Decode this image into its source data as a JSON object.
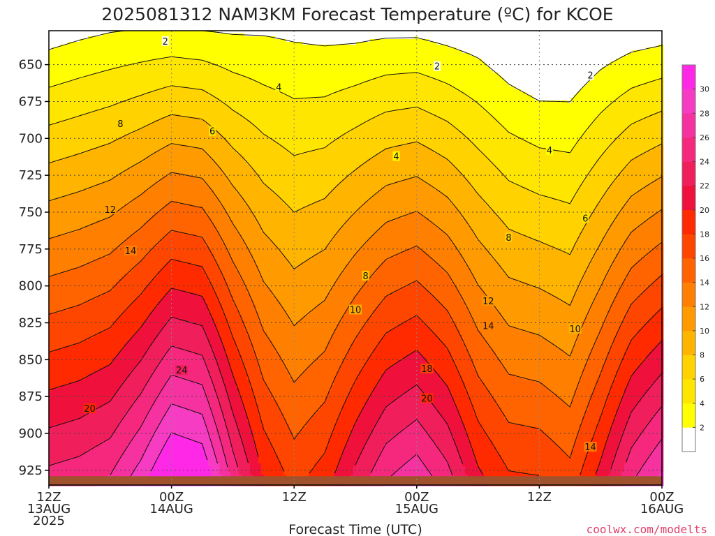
{
  "chart_data": {
    "type": "heatmap",
    "title": "2025081312 NAM3KM Forecast Temperature (ºC) for KCOE",
    "xlabel": "Forecast Time (UTC)",
    "ylabel": "",
    "credit": "coolwx.com/modelts",
    "x_ticks": [
      {
        "hour": 0,
        "line1": "12Z",
        "line2": "13AUG",
        "line3": "2025"
      },
      {
        "hour": 12,
        "line1": "00Z",
        "line2": "14AUG",
        "line3": ""
      },
      {
        "hour": 24,
        "line1": "12Z",
        "line2": "",
        "line3": ""
      },
      {
        "hour": 36,
        "line1": "00Z",
        "line2": "15AUG",
        "line3": ""
      },
      {
        "hour": 48,
        "line1": "12Z",
        "line2": "",
        "line3": ""
      },
      {
        "hour": 60,
        "line1": "00Z",
        "line2": "16AUG",
        "line3": ""
      }
    ],
    "xlim": [
      0,
      60
    ],
    "y_ticks": [
      650,
      675,
      700,
      725,
      750,
      775,
      800,
      825,
      850,
      875,
      900,
      925
    ],
    "ylim": [
      935,
      627
    ],
    "colorbar": {
      "ticks": [
        2,
        4,
        6,
        8,
        10,
        12,
        14,
        16,
        18,
        20,
        22,
        24,
        26,
        28,
        30
      ],
      "levels": [
        0,
        2,
        4,
        6,
        8,
        10,
        12,
        14,
        16,
        18,
        20,
        22,
        24,
        26,
        28,
        30,
        32
      ],
      "colors": [
        "#ffffff",
        "#ffff00",
        "#ffe600",
        "#ffd200",
        "#ffb400",
        "#ff9a00",
        "#ff7f00",
        "#ff6400",
        "#ff4600",
        "#ff2a00",
        "#f0103c",
        "#f01e5a",
        "#f5287d",
        "#f532a0",
        "#f53cc3",
        "#ff28e6"
      ]
    },
    "terrain_color": "#a0522d",
    "surface_pressure": 929,
    "profile": {
      "hours": [
        0,
        3,
        6,
        9,
        12,
        15,
        18,
        21,
        24,
        27,
        30,
        33,
        36,
        39,
        42,
        45,
        48,
        51,
        54,
        57,
        60
      ],
      "t_top": [
        1.0,
        1.5,
        1.9,
        2.1,
        2.2,
        2.0,
        1.8,
        1.8,
        1.6,
        1.4,
        1.4,
        1.6,
        1.6,
        1.2,
        0.8,
        -0.2,
        -1.0,
        -0.8,
        0.2,
        0.8,
        1.1
      ],
      "lapse": [
        0.078,
        0.078,
        0.08,
        0.089,
        0.102,
        0.1,
        0.078,
        0.06,
        0.052,
        0.058,
        0.07,
        0.08,
        0.085,
        0.078,
        0.065,
        0.061,
        0.063,
        0.058,
        0.068,
        0.082,
        0.09
      ]
    },
    "contour_labels": [
      {
        "v": "2",
        "hour": 11.4,
        "p": 634
      },
      {
        "v": "2",
        "hour": 38.0,
        "p": 651
      },
      {
        "v": "2",
        "hour": 53.0,
        "p": 657
      },
      {
        "v": "4",
        "hour": 22.5,
        "p": 665
      },
      {
        "v": "4",
        "hour": 34.0,
        "p": 712
      },
      {
        "v": "4",
        "hour": 49.0,
        "p": 708
      },
      {
        "v": "8",
        "hour": 7.0,
        "p": 690
      },
      {
        "v": "6",
        "hour": 16.0,
        "p": 695
      },
      {
        "v": "6",
        "hour": 52.5,
        "p": 754
      },
      {
        "v": "12",
        "hour": 6.0,
        "p": 748
      },
      {
        "v": "14",
        "hour": 8.0,
        "p": 776
      },
      {
        "v": "8",
        "hour": 31.0,
        "p": 793
      },
      {
        "v": "8",
        "hour": 45.0,
        "p": 767
      },
      {
        "v": "10",
        "hour": 30.0,
        "p": 816
      },
      {
        "v": "10",
        "hour": 51.5,
        "p": 829
      },
      {
        "v": "12",
        "hour": 43.0,
        "p": 810
      },
      {
        "v": "14",
        "hour": 43.0,
        "p": 827
      },
      {
        "v": "24",
        "hour": 13.0,
        "p": 857
      },
      {
        "v": "20",
        "hour": 4.0,
        "p": 883
      },
      {
        "v": "18",
        "hour": 37.0,
        "p": 856
      },
      {
        "v": "20",
        "hour": 37.0,
        "p": 876
      },
      {
        "v": "14",
        "hour": 53.0,
        "p": 909
      }
    ]
  }
}
